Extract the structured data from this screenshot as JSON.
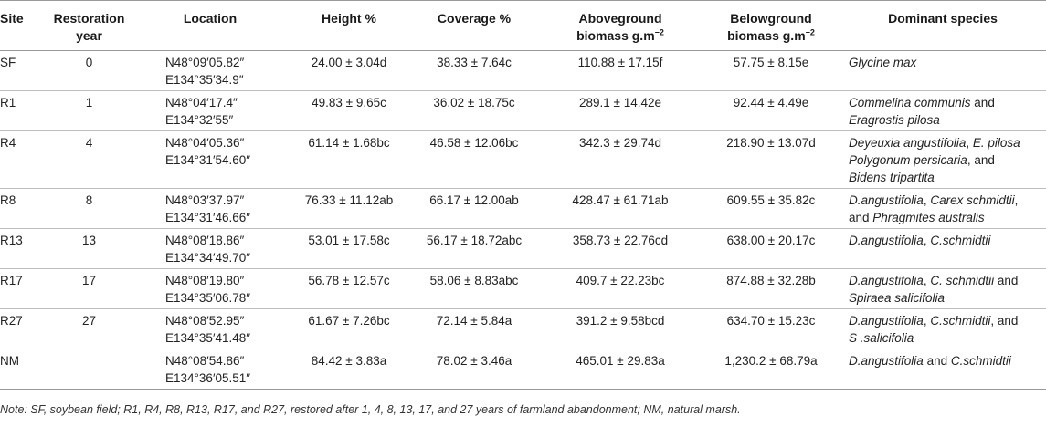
{
  "headers": {
    "site": "Site",
    "restoration_year_l1": "Restoration",
    "restoration_year_l2": "year",
    "location": "Location",
    "height": "Height %",
    "coverage": "Coverage %",
    "aboveground_l1": "Aboveground",
    "aboveground_l2": "biomass g.m",
    "belowground_l1": "Belowground",
    "belowground_l2": "biomass g.m",
    "biomass_exp": "−2",
    "dominant": "Dominant species"
  },
  "rows": [
    {
      "site": "SF",
      "year": "0",
      "loc1": "N48°09′05.82″",
      "loc2": "E134°35′34.9″",
      "height": "24.00 ± 3.04d",
      "coverage": "38.33 ± 7.64c",
      "above": "110.88 ± 17.15f",
      "below": "57.75 ± 8.15e",
      "dom": [
        [
          {
            "t": "Glycine max",
            "i": true
          }
        ]
      ]
    },
    {
      "site": "R1",
      "year": "1",
      "loc1": "N48°04′17.4″",
      "loc2": "E134°32′55″",
      "height": "49.83 ± 9.65c",
      "coverage": "36.02 ± 18.75c",
      "above": "289.1 ± 14.42e",
      "below": "92.44 ± 4.49e",
      "dom": [
        [
          {
            "t": "Commelina communis",
            "i": true
          },
          {
            "t": " and",
            "i": false
          }
        ],
        [
          {
            "t": "Eragrostis pilosa",
            "i": true
          }
        ]
      ]
    },
    {
      "site": "R4",
      "year": "4",
      "loc1": "N48°04′05.36″",
      "loc2": "E134°31′54.60″",
      "height": "61.14 ± 1.68bc",
      "coverage": "46.58 ± 12.06bc",
      "above": "342.3 ± 29.74d",
      "below": "218.90 ± 13.07d",
      "dom": [
        [
          {
            "t": "Deyeuxia angustifolia",
            "i": true
          },
          {
            "t": ", ",
            "i": false
          },
          {
            "t": "E. pilosa",
            "i": true
          }
        ],
        [
          {
            "t": "Polygonum persicaria",
            "i": true
          },
          {
            "t": ", and",
            "i": false
          }
        ],
        [
          {
            "t": "Bidens tripartita",
            "i": true
          }
        ]
      ]
    },
    {
      "site": "R8",
      "year": "8",
      "loc1": "N48°03′37.97″",
      "loc2": "E134°31′46.66″",
      "height": "76.33 ± 11.12ab",
      "coverage": "66.17 ± 12.00ab",
      "above": "428.47 ± 61.71ab",
      "below": "609.55 ± 35.82c",
      "dom": [
        [
          {
            "t": "D.angustifolia",
            "i": true
          },
          {
            "t": ", ",
            "i": false
          },
          {
            "t": "Carex schmidtii",
            "i": true
          },
          {
            "t": ",",
            "i": false
          }
        ],
        [
          {
            "t": "and ",
            "i": false
          },
          {
            "t": "Phragmites australis",
            "i": true
          }
        ]
      ]
    },
    {
      "site": "R13",
      "year": "13",
      "loc1": "N48°08′18.86″",
      "loc2": "E134°34′49.70″",
      "height": "53.01 ± 17.58c",
      "coverage": "56.17 ± 18.72abc",
      "above": "358.73 ± 22.76cd",
      "below": "638.00 ± 20.17c",
      "dom": [
        [
          {
            "t": "D.angustifolia",
            "i": true
          },
          {
            "t": ", ",
            "i": false
          },
          {
            "t": "C.schmidtii",
            "i": true
          }
        ]
      ]
    },
    {
      "site": "R17",
      "year": "17",
      "loc1": "N48°08′19.80″",
      "loc2": "E134°35′06.78″",
      "height": "56.78 ± 12.57c",
      "coverage": "58.06 ± 8.83abc",
      "above": "409.7 ± 22.23bc",
      "below": "874.88 ± 32.28b",
      "dom": [
        [
          {
            "t": "D.angustifolia",
            "i": true
          },
          {
            "t": ", ",
            "i": false
          },
          {
            "t": "C. schmidtii",
            "i": true
          },
          {
            "t": " and",
            "i": false
          }
        ],
        [
          {
            "t": "Spiraea salicifolia",
            "i": true
          }
        ]
      ]
    },
    {
      "site": "R27",
      "year": "27",
      "loc1": "N48°08′52.95″",
      "loc2": "E134°35′41.48″",
      "height": "61.67 ± 7.26bc",
      "coverage": "72.14 ± 5.84a",
      "above": "391.2 ± 9.58bcd",
      "below": "634.70 ± 15.23c",
      "dom": [
        [
          {
            "t": "D.angustifolia",
            "i": true
          },
          {
            "t": ", ",
            "i": false
          },
          {
            "t": "C.schmidtii",
            "i": true
          },
          {
            "t": ", and",
            "i": false
          }
        ],
        [
          {
            "t": "S .salicifolia",
            "i": true
          }
        ]
      ]
    },
    {
      "site": "NM",
      "year": "",
      "loc1": "N48°08′54.86″",
      "loc2": "E134°36′05.51″",
      "height": "84.42 ± 3.83a",
      "coverage": "78.02 ± 3.46a",
      "above": "465.01 ± 29.83a",
      "below": "1,230.2 ± 68.79a",
      "dom": [
        [
          {
            "t": "D.angustifolia",
            "i": true
          },
          {
            "t": " and ",
            "i": false
          },
          {
            "t": "C.schmidtii",
            "i": true
          }
        ]
      ]
    }
  ],
  "note": "Note: SF, soybean field; R1, R4, R8, R13, R17, and R27, restored after 1, 4, 8, 13, 17, and 27 years of farmland abandonment; NM, natural marsh."
}
